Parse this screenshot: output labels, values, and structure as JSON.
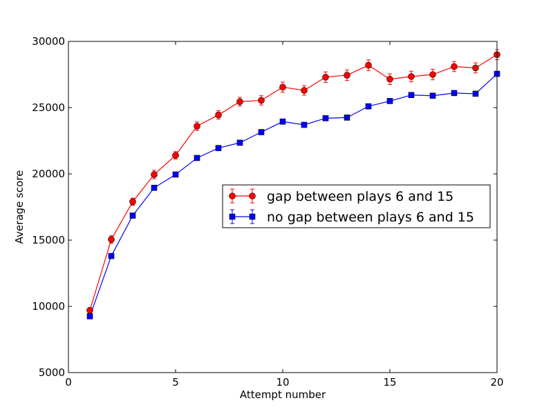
{
  "chart_data": {
    "type": "line",
    "title": "",
    "xlabel": "Attempt number",
    "ylabel": "Average score",
    "xlim": [
      0,
      20
    ],
    "ylim": [
      5000,
      30000
    ],
    "xticks": [
      "0",
      "5",
      "10",
      "15",
      "20"
    ],
    "yticks": [
      "5000",
      "10000",
      "15000",
      "20000",
      "25000",
      "30000"
    ],
    "grid": false,
    "legend_position": "center-right",
    "x": [
      1,
      2,
      3,
      4,
      5,
      6,
      7,
      8,
      9,
      10,
      11,
      12,
      13,
      14,
      15,
      16,
      17,
      18,
      19,
      20
    ],
    "series": [
      {
        "name": "gap between plays 6 and 15",
        "color": "#ff0000",
        "marker": "circle",
        "values": [
          9700,
          15050,
          17900,
          19950,
          21400,
          23600,
          24450,
          25450,
          25550,
          26550,
          26300,
          27300,
          27450,
          28200,
          27150,
          27350,
          27500,
          28100,
          28000,
          29000
        ],
        "error": [
          200,
          280,
          270,
          320,
          280,
          320,
          320,
          330,
          350,
          380,
          360,
          400,
          400,
          400,
          400,
          400,
          400,
          380,
          380,
          380
        ]
      },
      {
        "name": "no gap between plays 6 and 15",
        "color": "#0000ff",
        "marker": "square",
        "values": [
          9250,
          13800,
          16850,
          18950,
          19950,
          21200,
          21950,
          22350,
          23150,
          23950,
          23700,
          24200,
          24250,
          25100,
          25500,
          25950,
          25900,
          26100,
          26050,
          27550
        ],
        "error": [
          100,
          120,
          130,
          140,
          140,
          150,
          150,
          150,
          160,
          160,
          160,
          160,
          170,
          170,
          170,
          170,
          170,
          170,
          170,
          180
        ]
      }
    ]
  }
}
